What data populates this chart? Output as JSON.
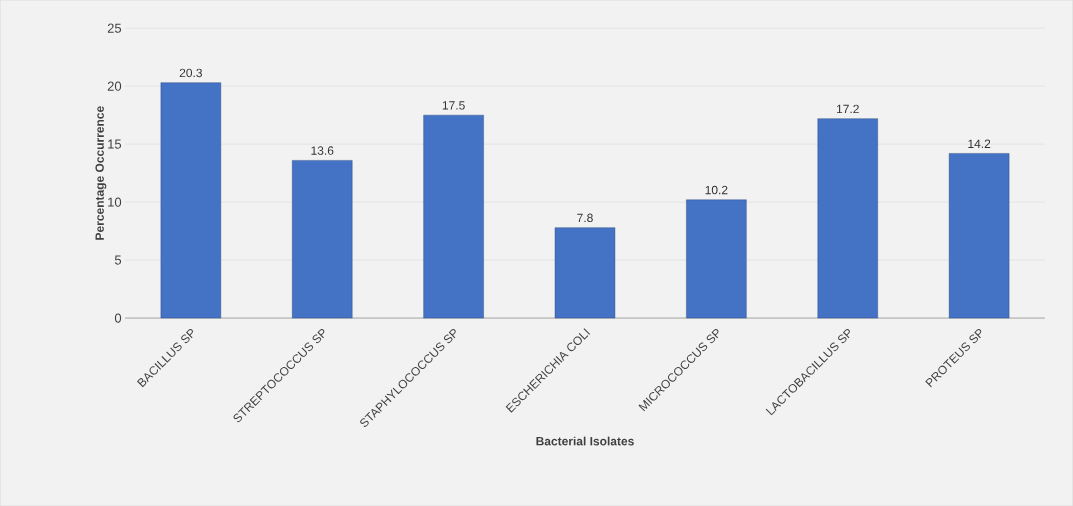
{
  "chart_data": {
    "type": "bar",
    "xlabel": "Bacterial Isolates",
    "ylabel": "Percentage Occurrence",
    "categories": [
      "BACILLUS SP",
      "STREPTOCOCCUS SP",
      "STAPHYLOCOCCUS SP",
      "ESCHERICHIA COLI",
      "MICROCOCCUS SP",
      "LACTOBACILLUS SP",
      "PROTEUS SP"
    ],
    "values": [
      20.3,
      13.6,
      17.5,
      7.8,
      10.2,
      17.2,
      14.2
    ],
    "color": "#4472c4",
    "ylim": [
      0,
      25
    ],
    "yticks": [
      0,
      5,
      10,
      15,
      20,
      25
    ],
    "grid": "y",
    "data_labels": true
  }
}
